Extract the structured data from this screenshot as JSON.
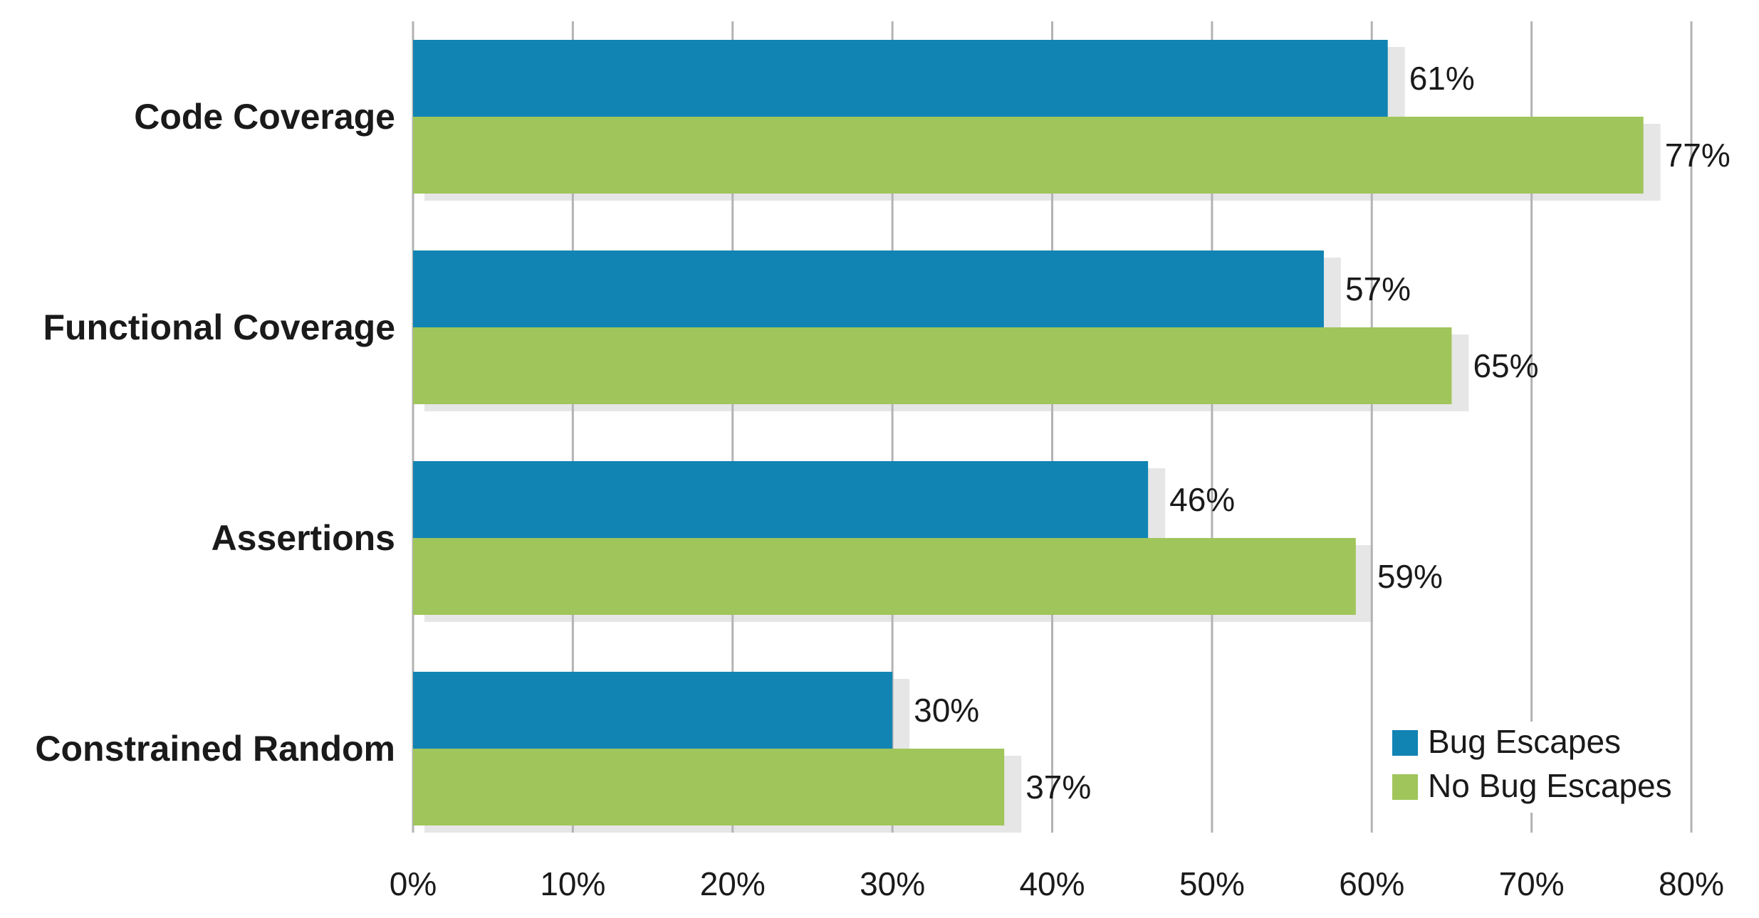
{
  "chart_data": {
    "type": "bar",
    "orientation": "horizontal",
    "categories": [
      "Code Coverage",
      "Functional Coverage",
      "Assertions",
      "Constrained Random"
    ],
    "series": [
      {
        "name": "Bug Escapes",
        "values": [
          61,
          57,
          46,
          30
        ],
        "labels": [
          "61%",
          "57%",
          "46%",
          "30%"
        ],
        "color": "#1184b3"
      },
      {
        "name": "No Bug Escapes",
        "values": [
          77,
          65,
          59,
          37
        ],
        "labels": [
          "77%",
          "65%",
          "59%",
          "37%"
        ],
        "color": "#a0c55b"
      }
    ],
    "xlim": [
      0,
      80
    ],
    "x_ticks": [
      0,
      10,
      20,
      30,
      40,
      50,
      60,
      70,
      80
    ],
    "x_tick_labels": [
      "0%",
      "10%",
      "20%",
      "30%",
      "40%",
      "50%",
      "60%",
      "70%",
      "80%"
    ],
    "grid": "vertical",
    "legend_position": "bottom-right",
    "shadow_color": "#e6e6e6"
  }
}
